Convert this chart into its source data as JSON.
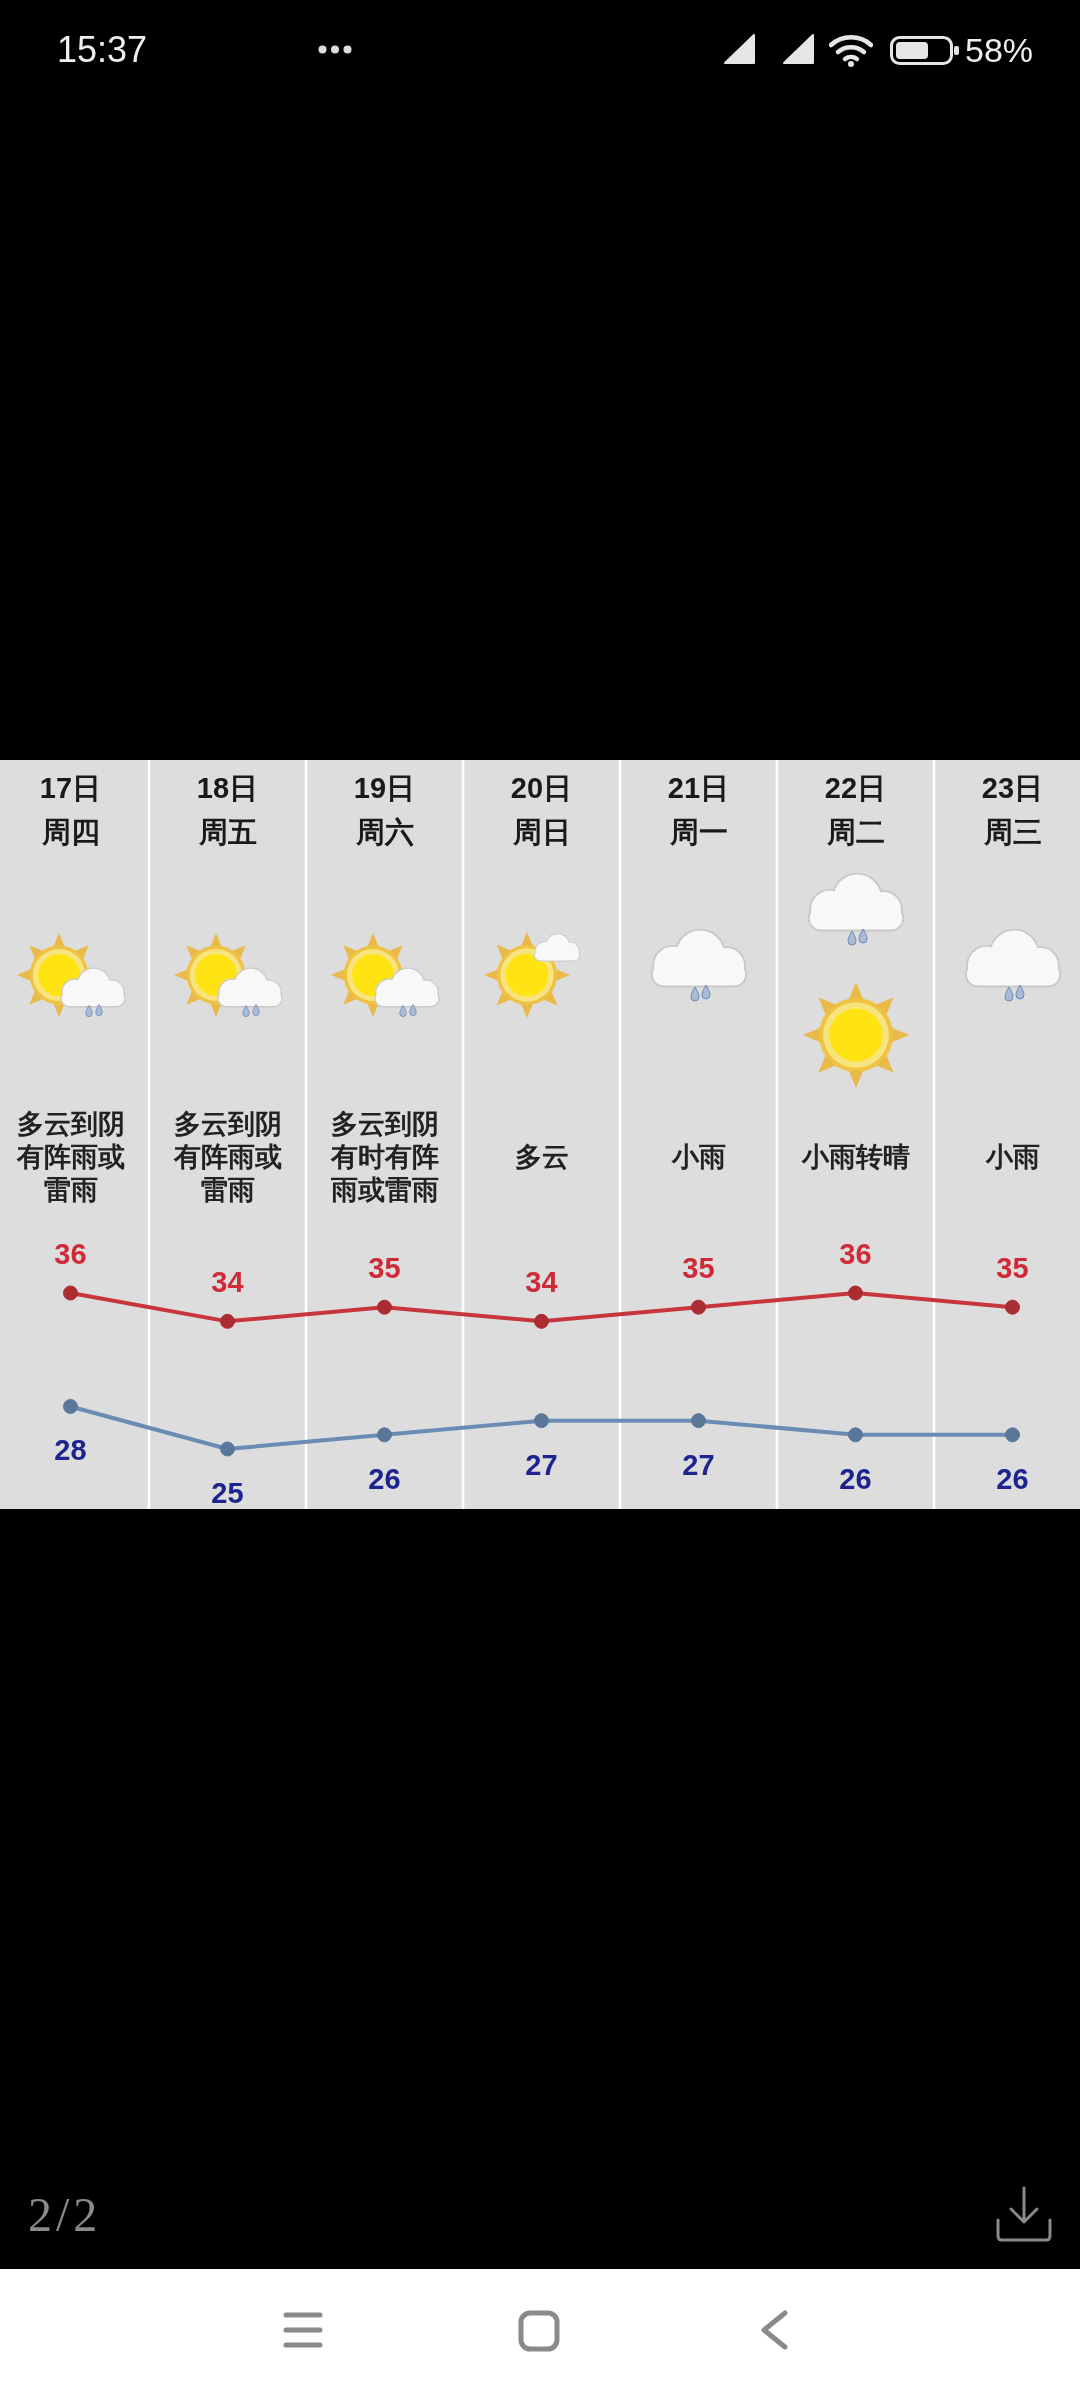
{
  "chart_data": {
    "type": "line",
    "categories": [
      "17日周四",
      "18日周五",
      "19日周六",
      "20日周日",
      "21日周一",
      "22日周二",
      "23日周三"
    ],
    "series": [
      {
        "color": "#c8353b",
        "values": [
          36,
          34,
          35,
          34,
          35,
          36,
          35
        ]
      },
      {
        "color": "#6a8cb4",
        "values": [
          28,
          25,
          26,
          27,
          27,
          26,
          26
        ]
      }
    ],
    "marker": "circle",
    "data_labels": true,
    "grid": "x",
    "annotations": [
      "多云到阴有阵雨或雷雨",
      "多云到阴有阵雨或雷雨",
      "多云到阴有时有阵雨或雷雨",
      "多云",
      "小雨",
      "小雨转晴",
      "小雨",
      "15:37",
      "58%",
      "2/2"
    ]
  }
}
